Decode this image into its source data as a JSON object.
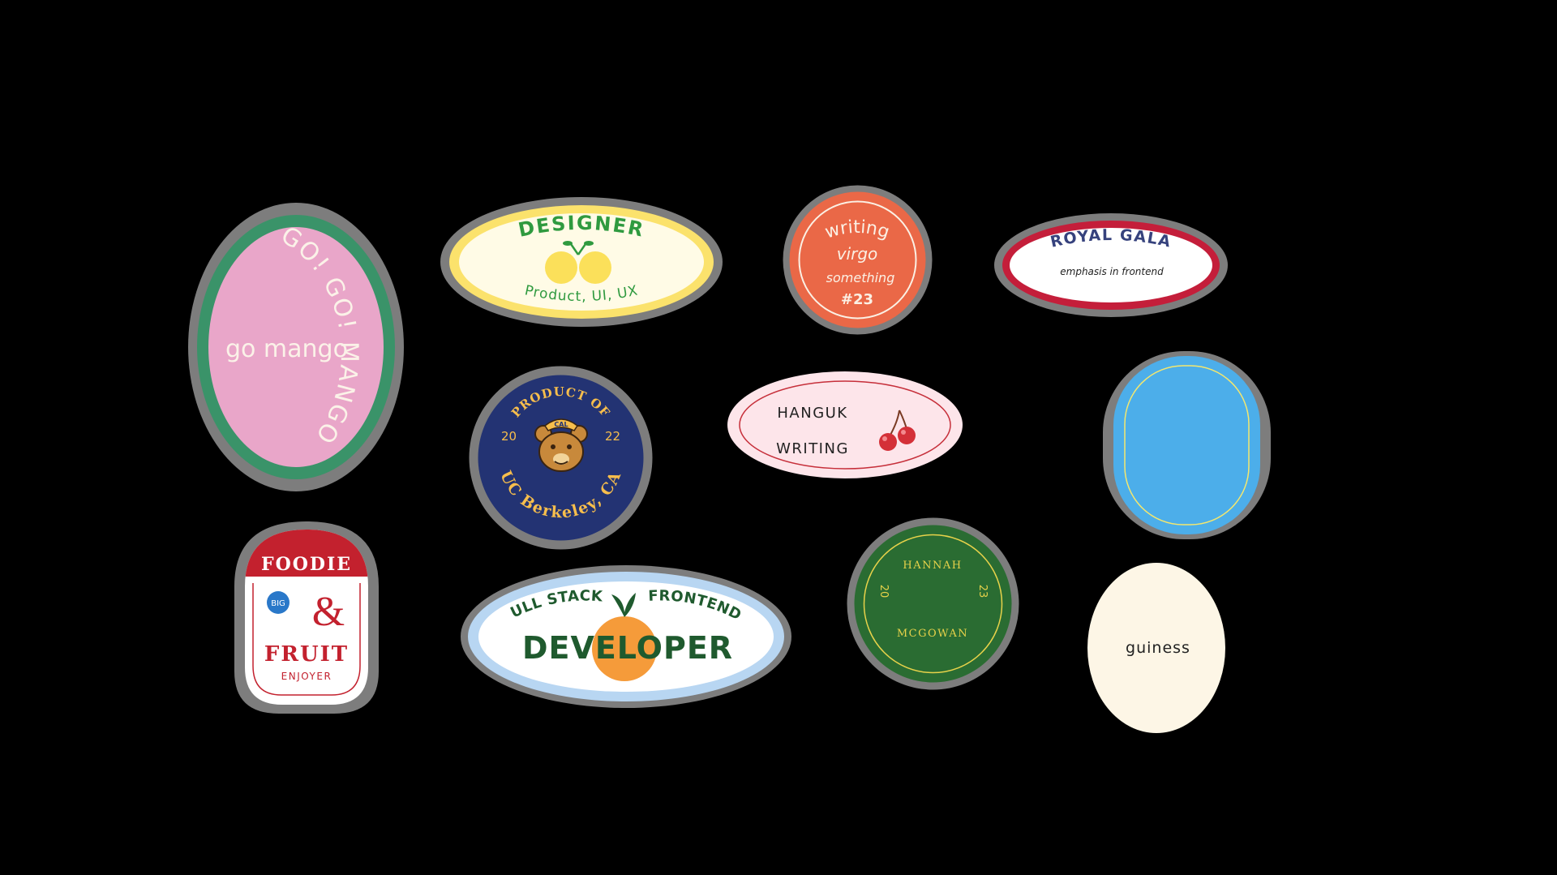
{
  "stickers": {
    "mango": {
      "curve_text": "GO! GO! MANGO",
      "main_text": "go mango",
      "colors": {
        "border": "#3a9369",
        "fill": "#e9a6c9",
        "text": "#fbf2e8"
      }
    },
    "designer": {
      "title": "DESIGNER",
      "subtitle": "Product, UI, UX",
      "colors": {
        "border": "#fbe26c",
        "fill": "#fffbe6",
        "text": "#2f9a3f",
        "fruit": "#fbe05a"
      }
    },
    "writing": {
      "line1": "writing",
      "line2": "virgo",
      "line3": "something",
      "line4": "#23",
      "colors": {
        "fill": "#ea6847",
        "ring": "#fbf0e4",
        "text": "#fbf0e4"
      }
    },
    "royal_gala": {
      "title": "ROYAL GALA",
      "subtitle": "emphasis in frontend",
      "colors": {
        "border": "#c41e3a",
        "fill": "#ffffff",
        "text": "#36427d"
      }
    },
    "berkeley": {
      "top_text": "PRODUCT OF",
      "bottom_text": "UC Berkeley, CA",
      "left_num": "20",
      "right_num": "22",
      "mascot_text": "CAL",
      "colors": {
        "fill": "#233373",
        "text": "#f7be4c",
        "mascot": "#c8893b"
      }
    },
    "hanguk": {
      "line1": "HANGUK",
      "line2": "WRITING",
      "colors": {
        "fill": "#fde5ea",
        "ring": "#c62f3a",
        "text": "#222222",
        "cherry": "#d43038"
      }
    },
    "blue_blank": {
      "colors": {
        "fill": "#4caeea",
        "ring": "#f4e76e"
      }
    },
    "foodie": {
      "top": "FOODIE",
      "amp": "&",
      "middle": "FRUIT",
      "bottom": "ENJOYER",
      "badge": "BIG",
      "colors": {
        "header": "#c3212e",
        "fill": "#ffffff",
        "ring": "#c3212e",
        "badge": "#2a78c9",
        "text": "#c3212e"
      }
    },
    "developer": {
      "left_arc": "FULL STACK",
      "right_arc": "FRONTEND",
      "title": "DEVELOPER",
      "colors": {
        "border": "#b8d6f2",
        "fill": "#ffffff",
        "text": "#1f5a2e",
        "orange": "#f59b3a"
      }
    },
    "hannah": {
      "top": "HANNAH",
      "bottom": "MCGOWAN",
      "left_num": "20",
      "right_num": "23",
      "colors": {
        "fill": "#2a6c32",
        "ring": "#e7d24a",
        "text": "#e7d24a"
      }
    },
    "guiness": {
      "text": "guiness",
      "colors": {
        "fill": "#fdf6e6",
        "text": "#222222"
      }
    }
  }
}
